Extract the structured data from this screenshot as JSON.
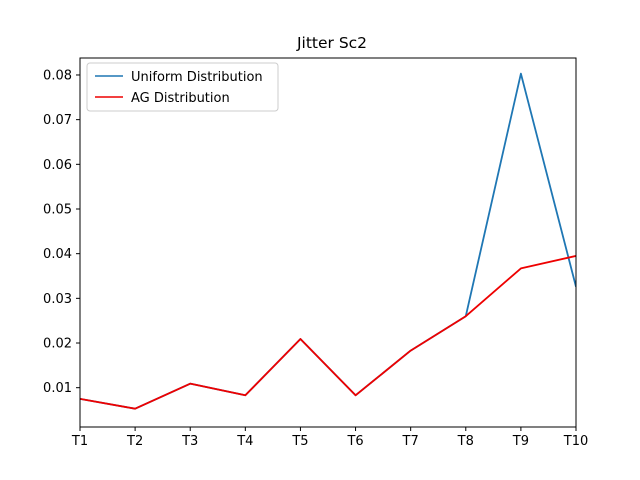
{
  "chart_data": {
    "type": "line",
    "title": "Jitter Sc2",
    "xlabel": "",
    "ylabel": "",
    "categories": [
      "T1",
      "T2",
      "T3",
      "T4",
      "T5",
      "T6",
      "T7",
      "T8",
      "T9",
      "T10"
    ],
    "ylim": [
      0.0012,
      0.0838
    ],
    "yticks": [
      "0.01",
      "0.02",
      "0.03",
      "0.04",
      "0.05",
      "0.06",
      "0.07",
      "0.08"
    ],
    "ytick_values": [
      0.01,
      0.02,
      0.03,
      0.04,
      0.05,
      0.06,
      0.07,
      0.08
    ],
    "grid": false,
    "legend_position": "top-left",
    "series": [
      {
        "name": "Uniform Distribution",
        "color": "#1f77b4",
        "values": [
          0.0075,
          0.0053,
          0.0109,
          0.0083,
          0.0209,
          0.0083,
          0.0183,
          0.026,
          0.0803,
          0.0326
        ]
      },
      {
        "name": "AG Distribution",
        "color": "#ee0000",
        "values": [
          0.0075,
          0.0053,
          0.0109,
          0.0083,
          0.0209,
          0.0083,
          0.0183,
          0.026,
          0.0367,
          0.0395
        ]
      }
    ]
  }
}
